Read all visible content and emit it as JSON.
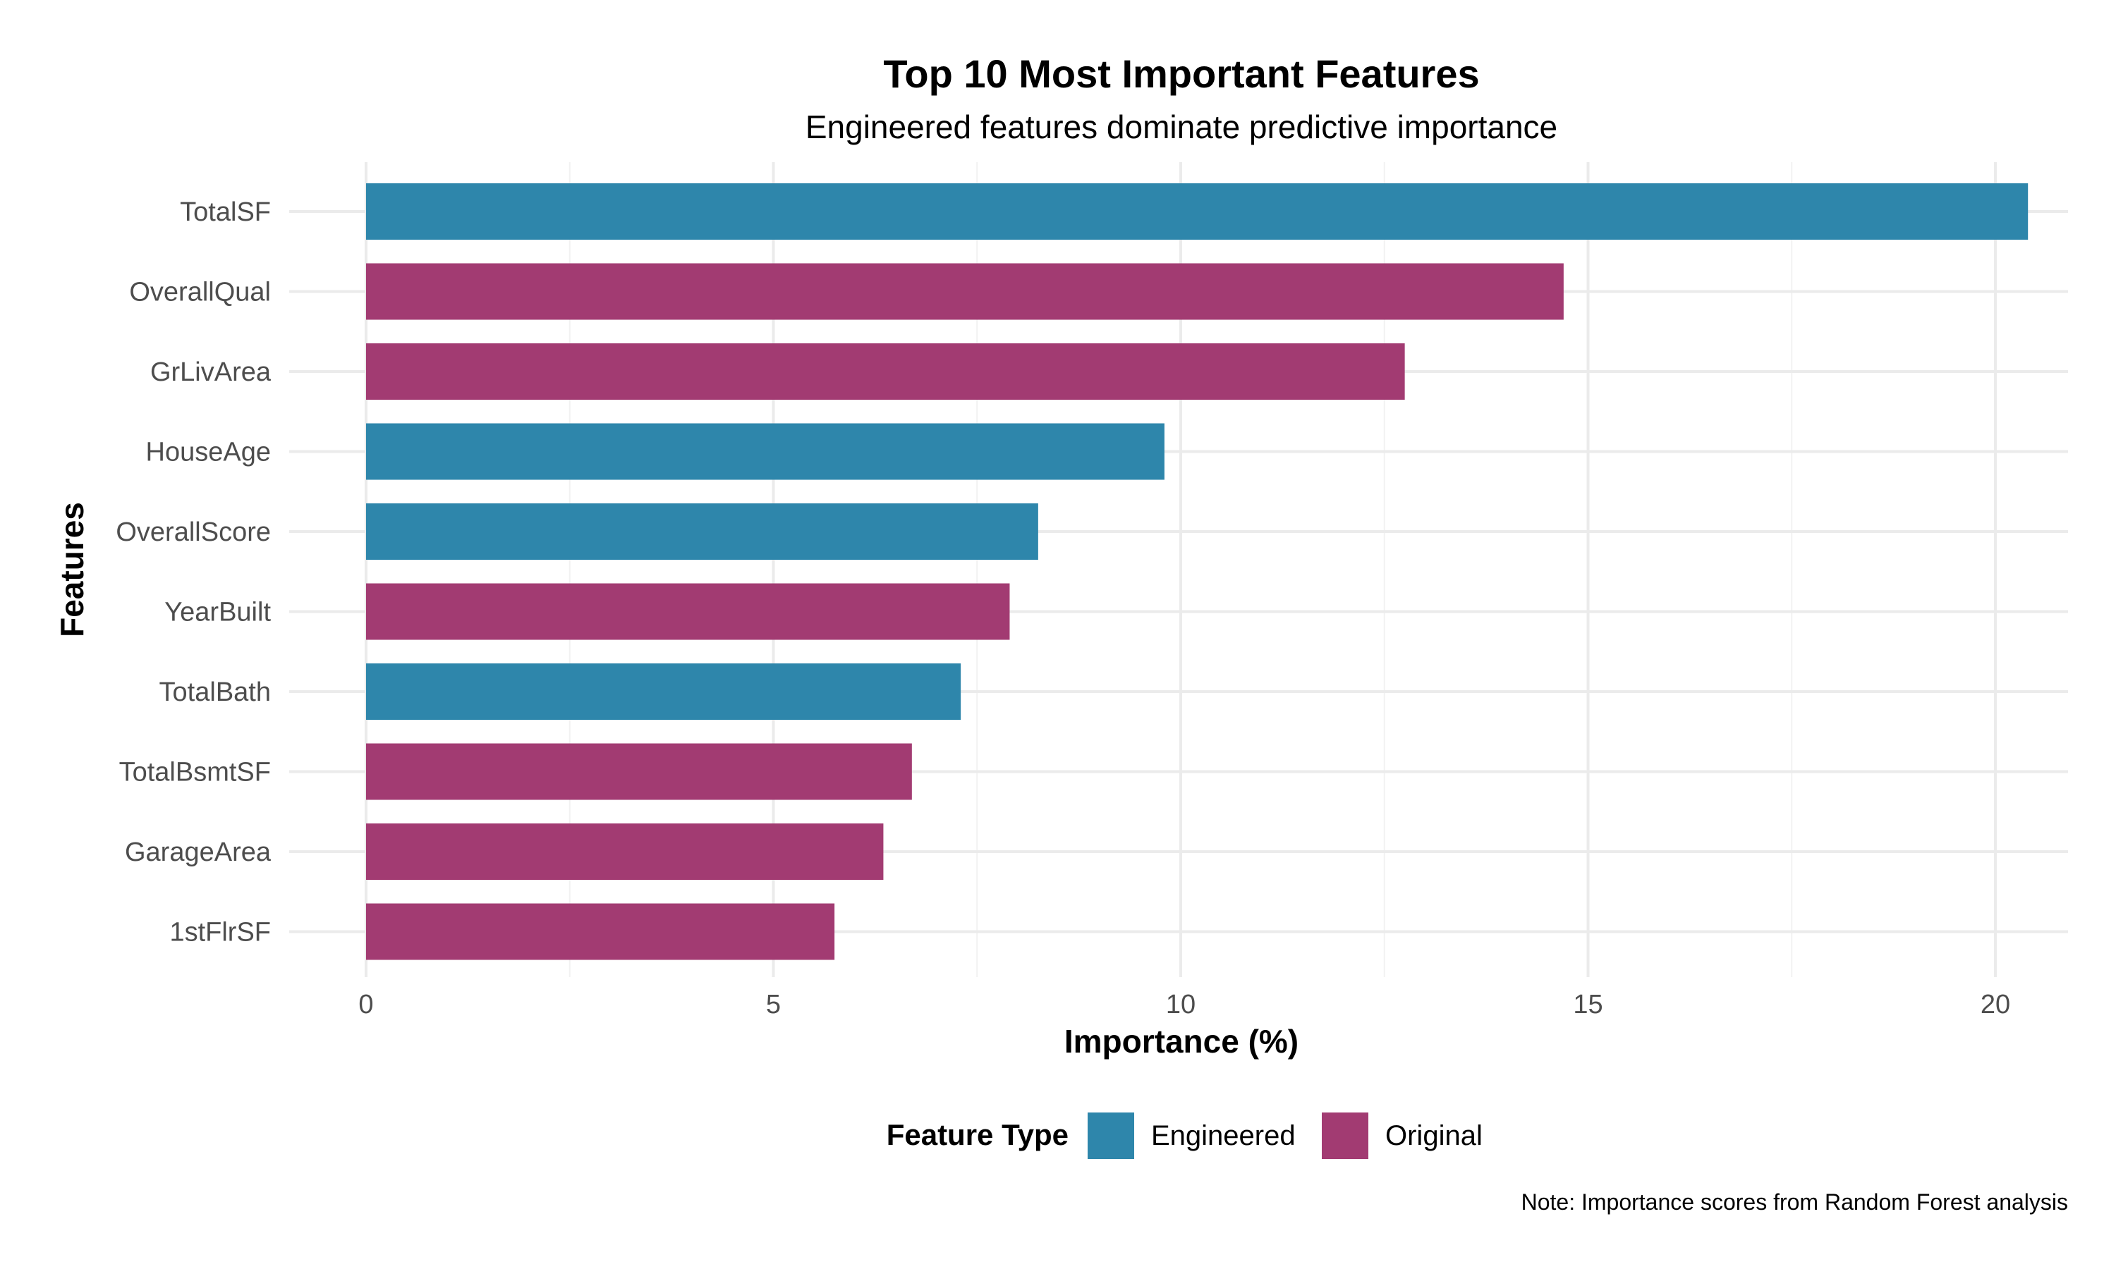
{
  "chart_data": {
    "type": "bar",
    "orientation": "horizontal",
    "title": "Top 10 Most Important Features",
    "subtitle": "Engineered features dominate predictive importance",
    "xlabel": "Importance (%)",
    "ylabel": "Features",
    "xlim": [
      0,
      21.5
    ],
    "x_ticks": [
      0,
      5,
      10,
      15,
      20
    ],
    "grid": true,
    "categories": [
      "TotalSF",
      "OverallQual",
      "GrLivArea",
      "HouseAge",
      "OverallScore",
      "YearBuilt",
      "TotalBath",
      "TotalBsmtSF",
      "GarageArea",
      "1stFlrSF"
    ],
    "values": [
      20.4,
      14.7,
      12.75,
      9.8,
      8.25,
      7.9,
      7.3,
      6.7,
      6.35,
      5.75
    ],
    "feature_type": [
      "Engineered",
      "Original",
      "Original",
      "Engineered",
      "Engineered",
      "Original",
      "Engineered",
      "Original",
      "Original",
      "Original"
    ],
    "legend": {
      "title": "Feature Type",
      "position": "bottom",
      "entries": [
        {
          "name": "Engineered",
          "color": "#2e86ab"
        },
        {
          "name": "Original",
          "color": "#a23b72"
        }
      ]
    },
    "caption": "Note: Importance scores from Random Forest analysis"
  }
}
